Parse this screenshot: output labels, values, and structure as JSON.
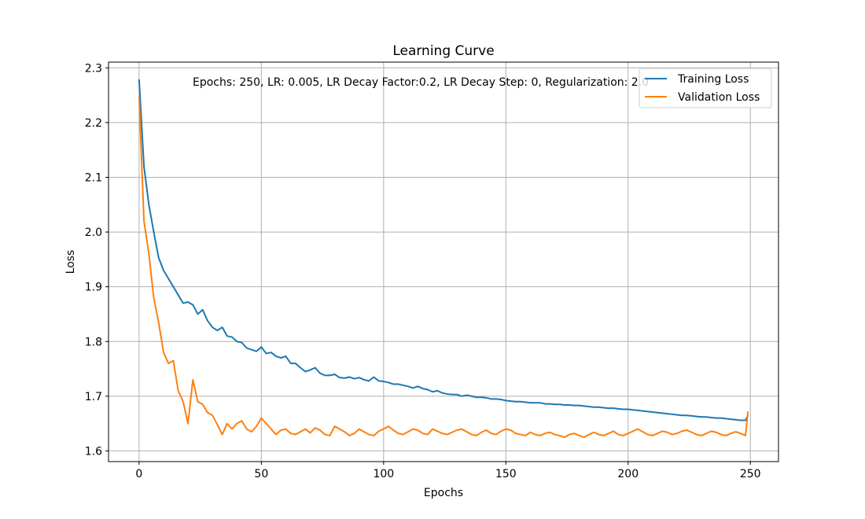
{
  "chart_data": {
    "type": "line",
    "title": "Learning Curve",
    "xlabel": "Epochs",
    "ylabel": "Loss",
    "annotation": "Epochs: 250, LR: 0.005, LR Decay Factor:0.2, LR Decay Step: 0, Regularization: 2.0",
    "xlim": [
      -12.5,
      261.5
    ],
    "ylim": [
      1.5805,
      2.3105
    ],
    "x_ticks": [
      0,
      50,
      100,
      150,
      200,
      250
    ],
    "x_tick_labels": [
      "0",
      "50",
      "100",
      "150",
      "200",
      "250"
    ],
    "y_ticks": [
      1.6,
      1.7,
      1.8,
      1.9,
      2.0,
      2.1,
      2.2,
      2.3
    ],
    "y_tick_labels": [
      "1.6",
      "1.7",
      "1.8",
      "1.9",
      "2.0",
      "2.1",
      "2.2",
      "2.3"
    ],
    "grid": true,
    "legend_position": "top-right",
    "x": [
      0,
      2,
      4,
      6,
      8,
      10,
      12,
      14,
      16,
      18,
      20,
      22,
      24,
      26,
      28,
      30,
      32,
      34,
      36,
      38,
      40,
      42,
      44,
      46,
      48,
      50,
      52,
      54,
      56,
      58,
      60,
      62,
      64,
      66,
      68,
      70,
      72,
      74,
      76,
      78,
      80,
      82,
      84,
      86,
      88,
      90,
      92,
      94,
      96,
      98,
      100,
      102,
      104,
      106,
      108,
      110,
      112,
      114,
      116,
      118,
      120,
      122,
      124,
      126,
      128,
      130,
      132,
      134,
      136,
      138,
      140,
      142,
      144,
      146,
      148,
      150,
      152,
      154,
      156,
      158,
      160,
      162,
      164,
      166,
      168,
      170,
      172,
      174,
      176,
      178,
      180,
      182,
      184,
      186,
      188,
      190,
      192,
      194,
      196,
      198,
      200,
      202,
      204,
      206,
      208,
      210,
      212,
      214,
      216,
      218,
      220,
      222,
      224,
      226,
      228,
      230,
      232,
      234,
      236,
      238,
      240,
      242,
      244,
      246,
      248,
      249
    ],
    "series": [
      {
        "name": "Training Loss",
        "color": "#1f77b4",
        "values": [
          2.279,
          2.12,
          2.05,
          2.0,
          1.953,
          1.93,
          1.915,
          1.9,
          1.885,
          1.87,
          1.872,
          1.867,
          1.85,
          1.858,
          1.838,
          1.826,
          1.82,
          1.826,
          1.81,
          1.808,
          1.8,
          1.798,
          1.788,
          1.785,
          1.782,
          1.79,
          1.778,
          1.78,
          1.773,
          1.77,
          1.773,
          1.76,
          1.76,
          1.752,
          1.745,
          1.748,
          1.752,
          1.742,
          1.738,
          1.738,
          1.74,
          1.734,
          1.733,
          1.735,
          1.732,
          1.734,
          1.73,
          1.728,
          1.735,
          1.728,
          1.727,
          1.725,
          1.722,
          1.722,
          1.72,
          1.718,
          1.715,
          1.718,
          1.714,
          1.712,
          1.708,
          1.71,
          1.706,
          1.704,
          1.703,
          1.703,
          1.7,
          1.702,
          1.7,
          1.698,
          1.698,
          1.697,
          1.695,
          1.695,
          1.694,
          1.692,
          1.691,
          1.69,
          1.69,
          1.689,
          1.688,
          1.688,
          1.688,
          1.686,
          1.686,
          1.685,
          1.685,
          1.684,
          1.684,
          1.683,
          1.683,
          1.682,
          1.681,
          1.68,
          1.68,
          1.679,
          1.678,
          1.678,
          1.677,
          1.676,
          1.676,
          1.675,
          1.674,
          1.673,
          1.672,
          1.671,
          1.67,
          1.669,
          1.668,
          1.667,
          1.666,
          1.665,
          1.665,
          1.664,
          1.663,
          1.662,
          1.662,
          1.661,
          1.66,
          1.66,
          1.659,
          1.658,
          1.657,
          1.656,
          1.656,
          1.665
        ]
      },
      {
        "name": "Validation Loss",
        "color": "#ff7f0e",
        "values": [
          2.248,
          2.02,
          1.96,
          1.88,
          1.835,
          1.78,
          1.76,
          1.765,
          1.71,
          1.69,
          1.65,
          1.73,
          1.69,
          1.685,
          1.67,
          1.665,
          1.648,
          1.63,
          1.65,
          1.64,
          1.65,
          1.655,
          1.64,
          1.635,
          1.645,
          1.66,
          1.65,
          1.64,
          1.63,
          1.638,
          1.64,
          1.632,
          1.63,
          1.635,
          1.64,
          1.633,
          1.642,
          1.638,
          1.63,
          1.628,
          1.645,
          1.64,
          1.635,
          1.628,
          1.632,
          1.64,
          1.635,
          1.63,
          1.628,
          1.636,
          1.64,
          1.645,
          1.638,
          1.632,
          1.63,
          1.635,
          1.64,
          1.638,
          1.632,
          1.63,
          1.64,
          1.636,
          1.632,
          1.63,
          1.634,
          1.638,
          1.64,
          1.635,
          1.63,
          1.628,
          1.634,
          1.638,
          1.632,
          1.63,
          1.636,
          1.64,
          1.638,
          1.632,
          1.63,
          1.628,
          1.634,
          1.63,
          1.628,
          1.632,
          1.634,
          1.63,
          1.628,
          1.625,
          1.63,
          1.632,
          1.628,
          1.625,
          1.63,
          1.634,
          1.63,
          1.628,
          1.632,
          1.636,
          1.63,
          1.628,
          1.632,
          1.636,
          1.64,
          1.635,
          1.63,
          1.628,
          1.632,
          1.636,
          1.634,
          1.63,
          1.632,
          1.636,
          1.638,
          1.634,
          1.63,
          1.628,
          1.632,
          1.636,
          1.634,
          1.63,
          1.628,
          1.632,
          1.635,
          1.632,
          1.628,
          1.672
        ]
      }
    ]
  }
}
